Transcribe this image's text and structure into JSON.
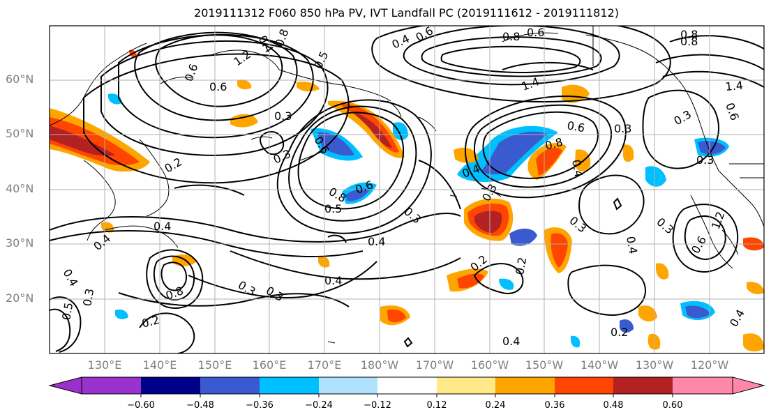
{
  "title": "2019111312 F060 850 hPa PV, IVT Landfall PC (2019111612 - 2019111812)",
  "lat_labels": [
    "60°N",
    "50°N",
    "40°N",
    "30°N",
    "20°N"
  ],
  "lon_labels": [
    "130°E",
    "140°E",
    "150°E",
    "160°E",
    "170°E",
    "180°W",
    "170°W",
    "160°W",
    "150°W",
    "140°W",
    "130°W",
    "120°W"
  ],
  "colorbar": {
    "ticks": [
      "−0.60",
      "−0.48",
      "−0.36",
      "−0.24",
      "−0.12",
      "0.12",
      "0.24",
      "0.36",
      "0.48",
      "0.60"
    ],
    "colors": [
      "#9932cc",
      "#00008b",
      "#3a5bd0",
      "#00bfff",
      "#b0e2ff",
      "#ffffff",
      "#ffe887",
      "#ffa500",
      "#ff4500",
      "#b22222",
      "#ff88aa"
    ]
  },
  "contour_labels": [
    "0.6",
    "0.4",
    "0.8",
    "0.4",
    "0.8",
    "0.6",
    "1.2",
    "0.6",
    "0.5",
    "0.3",
    "0.3",
    "0.6",
    "0.8",
    "0.6",
    "0.3",
    "0.4",
    "0.4",
    "0.3",
    "0.3",
    "0.8",
    "0.5",
    "0.2",
    "0.2",
    "0.4",
    "0.4",
    "0.4",
    "0.5",
    "0.3",
    "0.4",
    "0.3",
    "0.2",
    "0.2",
    "0.4",
    "0.8",
    "0.6",
    "0.4",
    "0.3",
    "0.2",
    "0.3",
    "0.4",
    "1.4",
    "1.4",
    "0.3",
    "0.6",
    "0.3",
    "0.6",
    "1.2",
    "0.8",
    "0.6",
    "0.3",
    "0.8",
    "0.4"
  ]
}
